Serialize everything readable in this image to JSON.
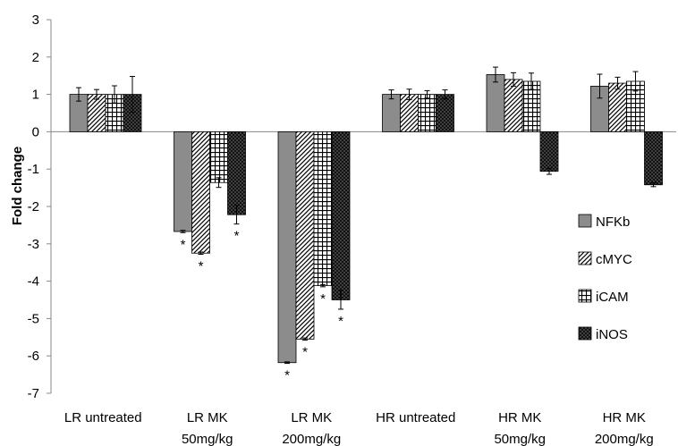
{
  "chart_data": {
    "type": "bar",
    "title": "",
    "xlabel": "",
    "ylabel": "Fold change",
    "ylim": [
      -7,
      3
    ],
    "yticks": [
      3,
      2,
      1,
      0,
      -1,
      -2,
      -3,
      -4,
      -5,
      -6,
      -7
    ],
    "grid": false,
    "legend_position": "right",
    "categories": [
      [
        "LR untreated"
      ],
      [
        "LR MK",
        "50mg/kg"
      ],
      [
        "LR MK",
        "200mg/kg"
      ],
      [
        "HR untreated"
      ],
      [
        "HR MK",
        "50mg/kg"
      ],
      [
        "HR MK",
        "200mg/kg"
      ]
    ],
    "series": [
      {
        "name": "NFKb",
        "pattern": "solid-gray",
        "values": [
          1.0,
          -2.67,
          -6.18,
          1.0,
          1.53,
          1.22
        ],
        "errors": [
          0.18,
          0.03,
          0.02,
          0.12,
          0.2,
          0.32
        ],
        "significant": [
          false,
          true,
          true,
          false,
          false,
          false
        ]
      },
      {
        "name": "cMYC",
        "pattern": "diagonal",
        "values": [
          1.0,
          -3.25,
          -5.55,
          1.0,
          1.4,
          1.3
        ],
        "errors": [
          0.13,
          0.03,
          0.03,
          0.14,
          0.18,
          0.16
        ],
        "significant": [
          false,
          true,
          true,
          false,
          false,
          false
        ]
      },
      {
        "name": "iCAM",
        "pattern": "grid",
        "values": [
          1.0,
          -1.36,
          -4.12,
          1.0,
          1.35,
          1.35
        ],
        "errors": [
          0.23,
          0.13,
          0.03,
          0.1,
          0.22,
          0.26
        ],
        "significant": [
          false,
          false,
          true,
          false,
          false,
          false
        ]
      },
      {
        "name": "iNOS",
        "pattern": "dotted-dark",
        "values": [
          1.0,
          -2.22,
          -4.5,
          1.0,
          -1.06,
          -1.42
        ],
        "errors": [
          0.48,
          0.25,
          0.25,
          0.12,
          0.08,
          0.05
        ],
        "significant": [
          false,
          true,
          true,
          false,
          false,
          false
        ]
      }
    ],
    "significance_marker": "*"
  }
}
